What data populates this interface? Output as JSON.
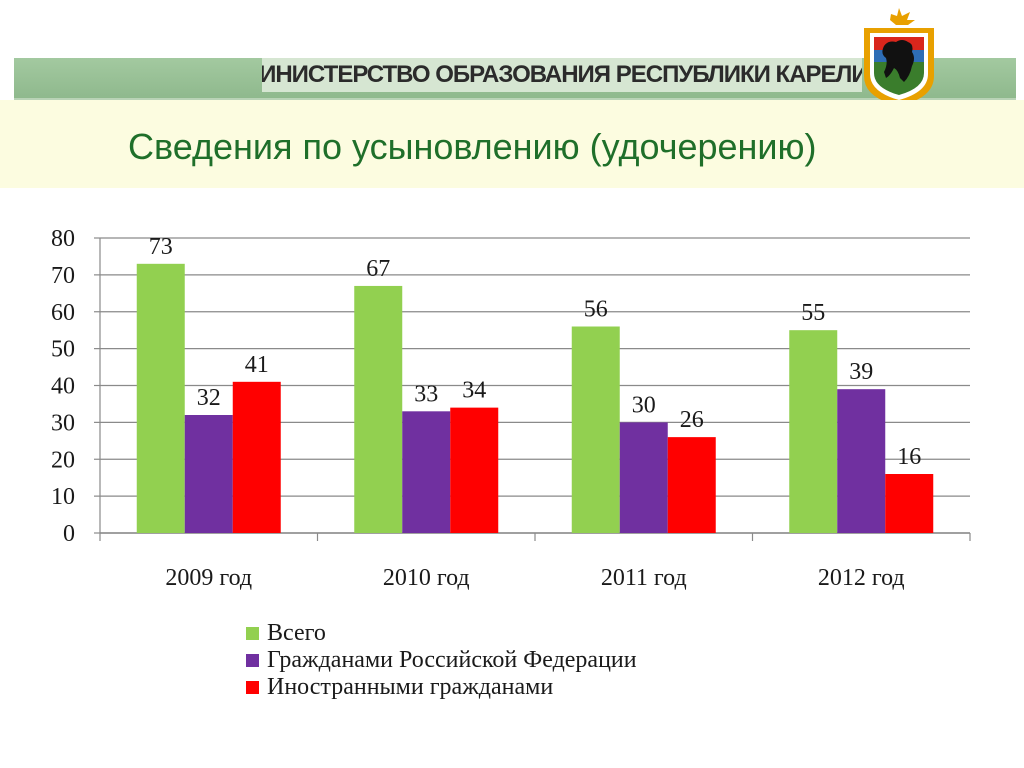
{
  "header": {
    "ministry": "МИНИСТЕРСТВО ОБРАЗОВАНИЯ РЕСПУБЛИКИ КАРЕЛИЯ",
    "title": "Сведения по усыновлению (удочерению)"
  },
  "icons": {
    "emblem": "karelia-coat-of-arms-icon"
  },
  "colors": {
    "header_band": "#8fb98d",
    "title_text": "#1f6f2a",
    "title_bar": "#fcfce0"
  },
  "chart_data": {
    "type": "bar",
    "categories": [
      "2009 год",
      "2010 год",
      "2011 год",
      "2012 год"
    ],
    "series": [
      {
        "name": "Всего",
        "values": [
          73,
          67,
          56,
          55
        ],
        "color": "#92d050"
      },
      {
        "name": "Гражданами Российской Федерации",
        "values": [
          32,
          33,
          30,
          39
        ],
        "color": "#7030a0"
      },
      {
        "name": "Иностранными гражданами",
        "values": [
          41,
          34,
          26,
          16
        ],
        "color": "#ff0000"
      }
    ],
    "ylim": [
      0,
      80
    ],
    "yticks": [
      "0",
      "10",
      "20",
      "30",
      "40",
      "50",
      "60",
      "70",
      "80"
    ],
    "grid": true,
    "legend_position": "bottom",
    "data_labels": true
  }
}
